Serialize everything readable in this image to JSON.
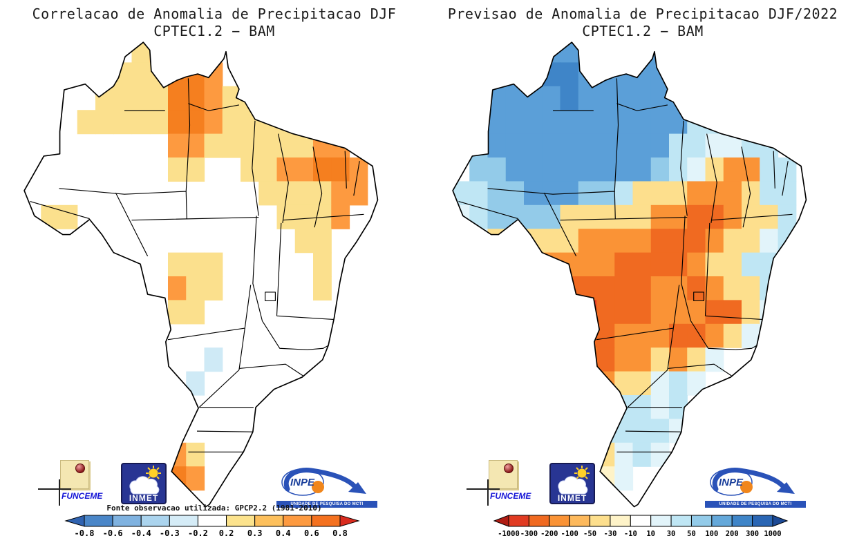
{
  "panels": [
    {
      "title_line1": "Correlacao de Anomalia de Precipitacao DJF",
      "title_line2": "CPTEC1.2 − BAM",
      "source_note": "Fonte observacao utilizada: GPCP2.2 (1981-2010)",
      "colorbar": {
        "labels": [
          "-0.8",
          "-0.6",
          "-0.4",
          "-0.3",
          "-0.2",
          "0.2",
          "0.3",
          "0.4",
          "0.6",
          "0.8"
        ],
        "segments": [
          "#4a86c8",
          "#7fb2e0",
          "#abd4ee",
          "#d5ecf7",
          "#ffffff",
          "#fce38d",
          "#fdc05c",
          "#fd9a40",
          "#f4711f"
        ],
        "arrow_left": "#2f62b0",
        "arrow_right": "#d92b1e"
      },
      "palette": {
        "y": "#fbe08d",
        "o": "#fd9a40",
        "O": "#f57f1f",
        "c": "#cfeaf6"
      },
      "grid": [
        "......yoy...........",
        "....yyyyOOo.........",
        "....yyyyOOoyy.......",
        "...yyyyyOOoyyyyy....",
        "........ooyyyyyyoo..",
        "........yy..yyooOOo.",
        ".............yyyyoo.",
        ".yy...........yyyo..",
        "...............yy...",
        "........yyy.....y...",
        "........oyy.....y...",
        "........yy..........",
        "....................",
        "..........c.........",
        ".........c..........",
        "....................",
        "....................",
        "........oy..........",
        "........Oo..........",
        "...................."
      ]
    },
    {
      "title_line1": "Previsao de Anomalia de Precipitacao DJF/2022",
      "title_line2": "CPTEC1.2 − BAM",
      "colorbar": {
        "labels": [
          "-1000",
          "-300",
          "-200",
          "-100",
          "-50",
          "-30",
          "-10",
          "10",
          "30",
          "50",
          "100",
          "200",
          "300",
          "1000"
        ],
        "segments": [
          "#e13b22",
          "#f06a21",
          "#fa9336",
          "#fdb95c",
          "#fddf8d",
          "#fef3c8",
          "#ffffff",
          "#e2f4fa",
          "#bfe6f4",
          "#93cbe9",
          "#64a8da",
          "#3f85c8",
          "#2a66b4"
        ],
        "arrow_left": "#b01c13",
        "arrow_right": "#1c4a96"
      },
      "palette": {
        "R": "#e13b22",
        "O": "#f06a21",
        "o": "#fa9336",
        "l": "#fdb95c",
        "y": "#fddf8d",
        "w": "#fef3c8",
        "p": "#e2f4fa",
        "c": "#bfe6f4",
        "b": "#93cbe9",
        "B": "#5b9fd8",
        "M": "#3f85c8",
        "D": "#2a66b4"
      },
      "grid": [
        "....BBBB..BB........",
        "..BBBMMBBBBB........",
        ".BBBBBMBBBBBBc......",
        "bBBBBBBBBBBBBcc.....",
        "bbBBBBBBBBBBccppcc..",
        ".bbBBBBBBBBbcpyoocc.",
        "ccbbBBBbbcyyyoooycc.",
        "pcbbbbyyyyyooOOoyyc.",
        ".pyyyyyooooOOOoyypc.",
        "..yyyooooOOOOoyycc..",
        "...yyoOOOOOooOoyyc..",
        "....yoOROOOoooOOyp..",
        ".....yOOOoooOOoyp...",
        "......yoOooyoyp.....",
        "......yyoyypcp......",
        ".......ppccpc.......",
        ".......pccccp.......",
        "......wyypcp........",
        "......ywwp..........",
        "........w..........."
      ]
    }
  ],
  "logos": {
    "funceme": {
      "label": "FUNCEME"
    },
    "inmet": {
      "label": "INMET"
    },
    "inpe": {
      "label": "INPE",
      "banner": "UNIDADE DE PESQUISA DO MCTI"
    }
  },
  "chart_data": [
    {
      "type": "heatmap",
      "title": "Correlacao de Anomalia de Precipitacao DJF CPTEC1.2 − BAM",
      "legend_labels": [
        "-0.8",
        "-0.6",
        "-0.4",
        "-0.3",
        "-0.2",
        "0.2",
        "0.3",
        "0.4",
        "0.6",
        "0.8"
      ],
      "annotation": "Fonte observacao utilizada: GPCP2.2 (1981-2010)"
    },
    {
      "type": "heatmap",
      "title": "Previsao de Anomalia de Precipitacao DJF/2022 CPTEC1.2 − BAM",
      "legend_labels": [
        "-1000",
        "-300",
        "-200",
        "-100",
        "-50",
        "-30",
        "-10",
        "10",
        "30",
        "50",
        "100",
        "200",
        "300",
        "1000"
      ]
    }
  ]
}
